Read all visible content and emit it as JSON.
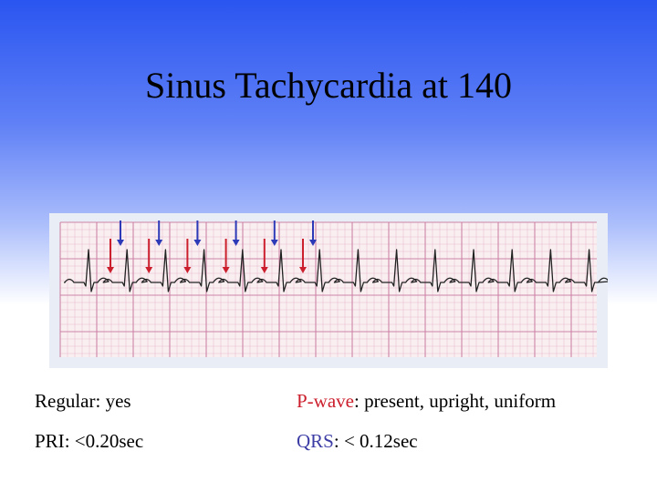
{
  "slide": {
    "title": "Sinus Tachycardia at 140"
  },
  "ecg": {
    "paper_color": "#f9eef0",
    "grid_color": "#c97aa0",
    "trace_color": "#222222",
    "p_wave_arrow_color": "#cc1f2d",
    "qrs_arrow_color": "#2d3ab8",
    "p_wave_arrow_count": 6,
    "qrs_arrow_count": 6
  },
  "criteria": {
    "regular": {
      "label": "Regular",
      "value": ": yes"
    },
    "pwave": {
      "label": "P-wave",
      "value": ": present, upright, uniform",
      "label_color": "#cc1f2d"
    },
    "pri": {
      "label": "PRI",
      "value": ": <0.20sec"
    },
    "qrs": {
      "label": "QRS",
      "value": ": < 0.12sec",
      "label_color": "#3d3da6"
    }
  }
}
